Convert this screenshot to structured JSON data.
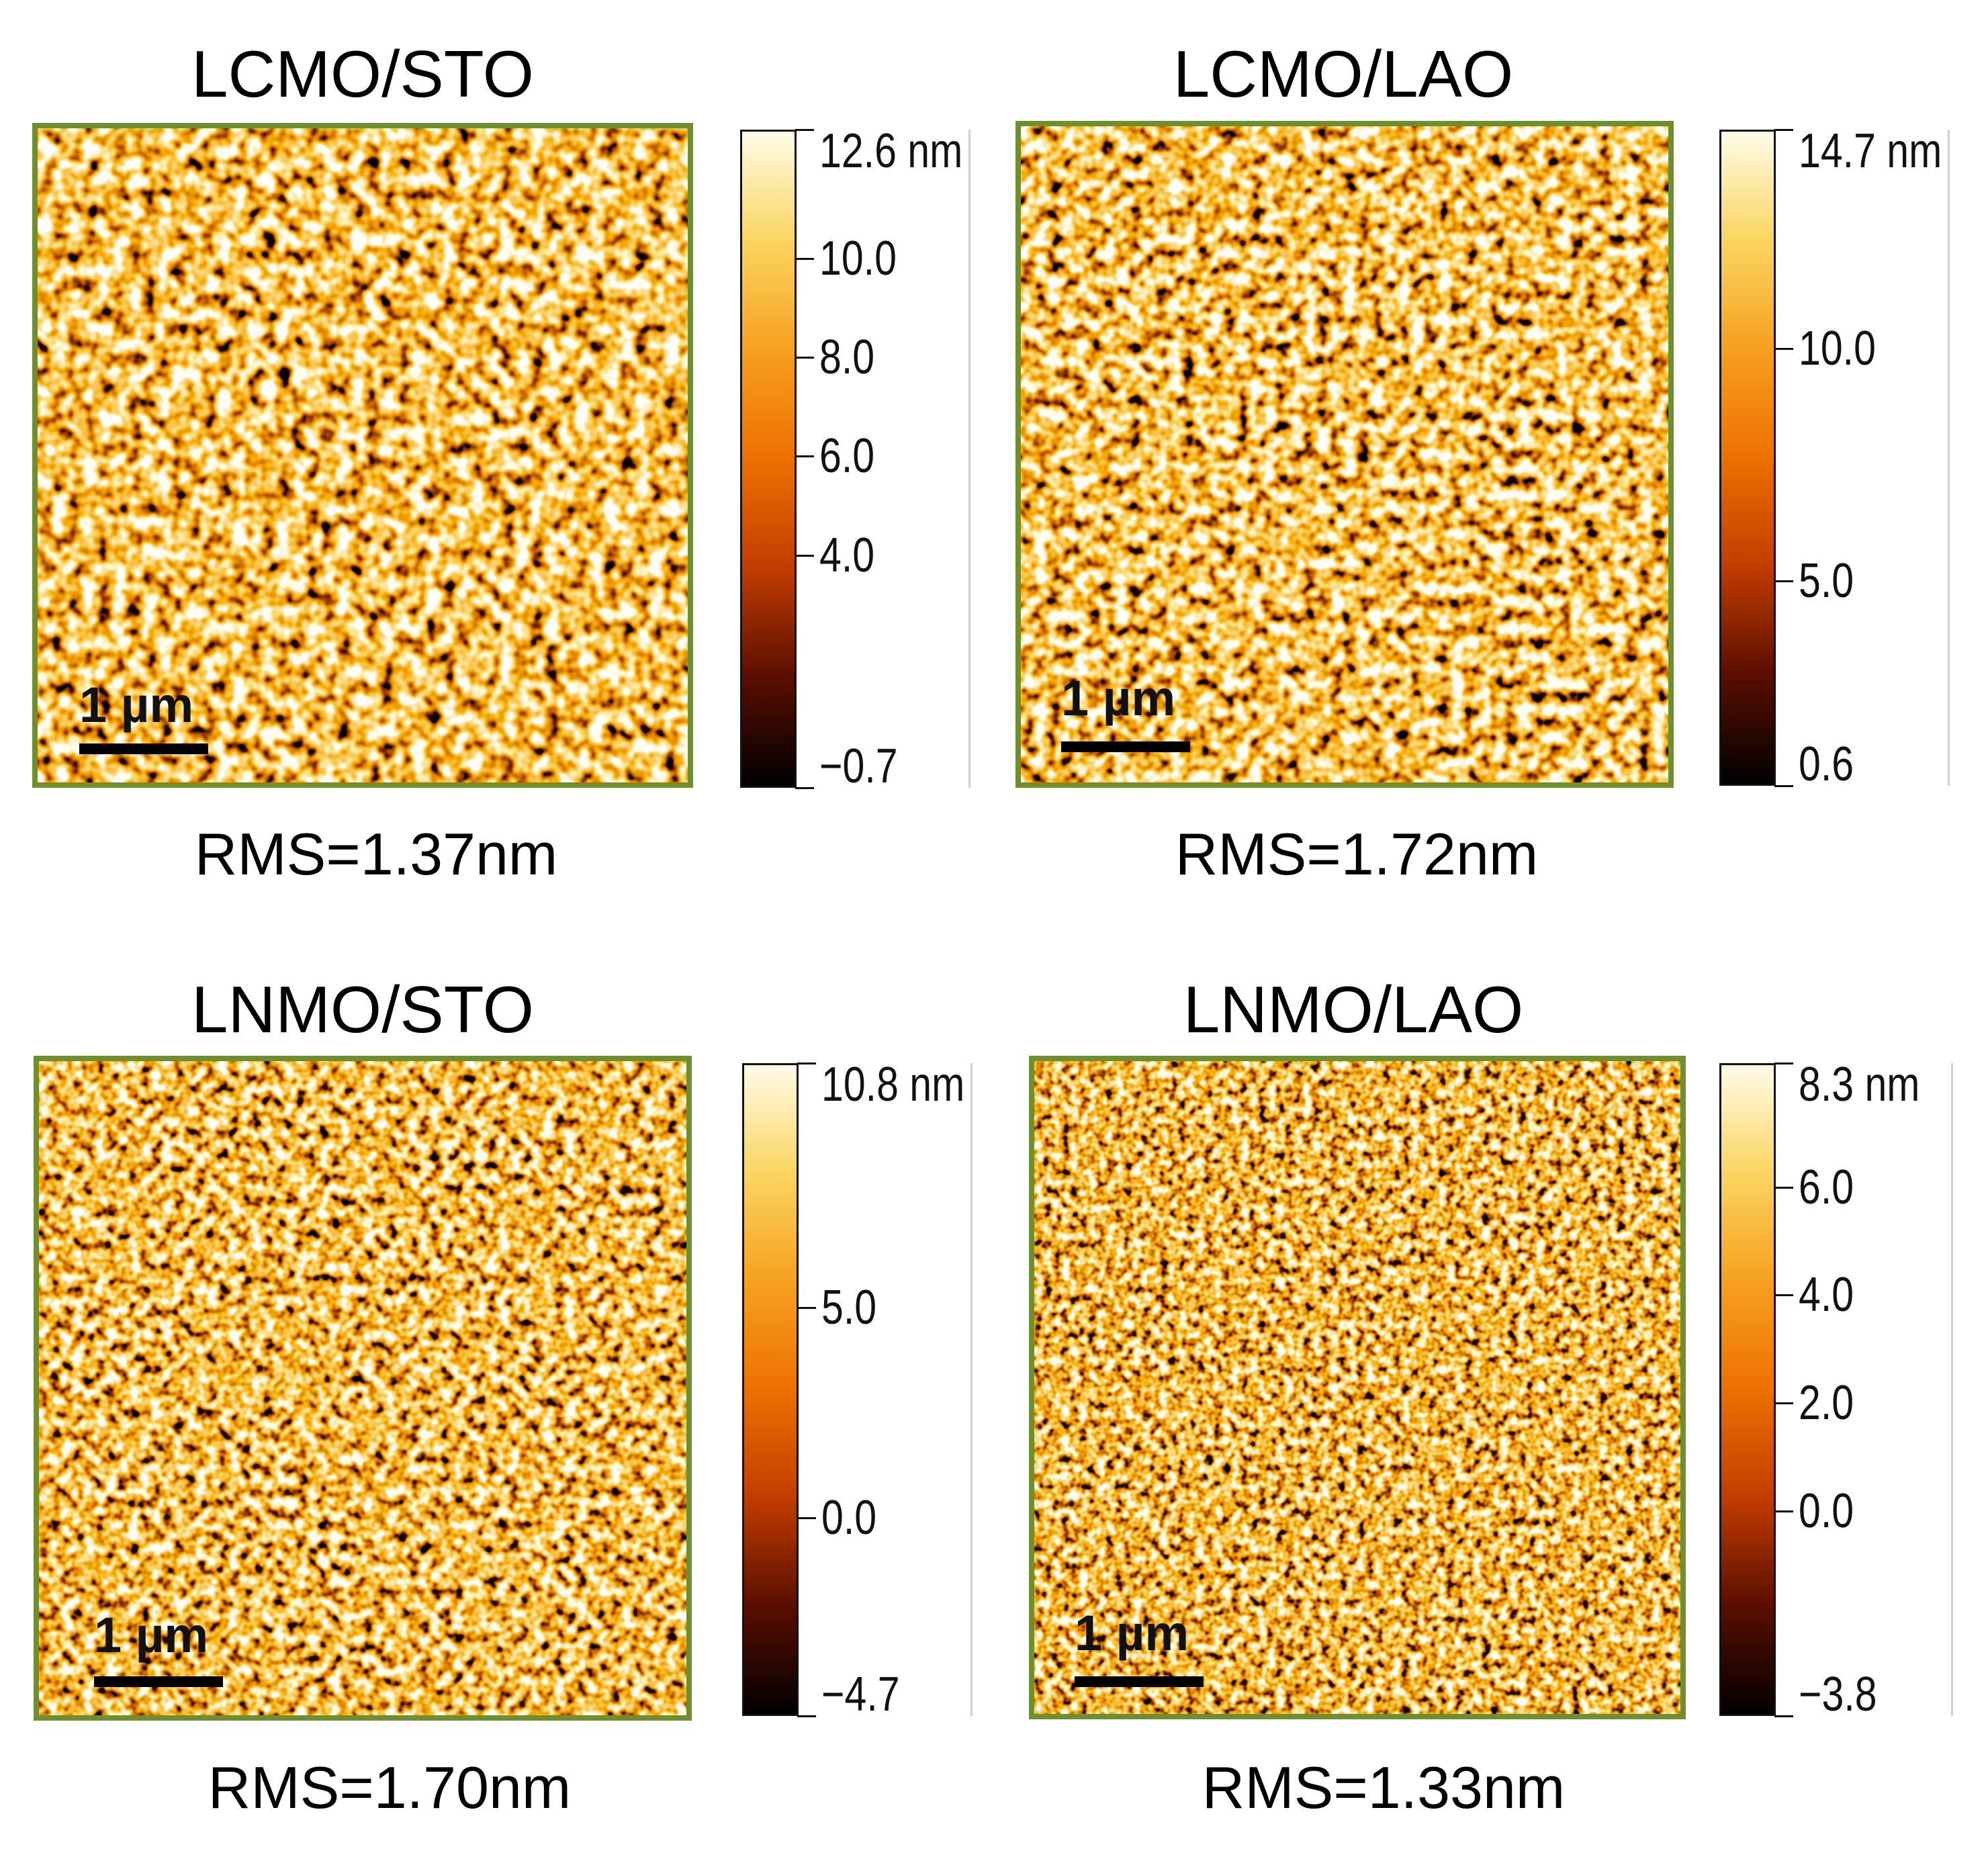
{
  "colors": {
    "frame": "#6e8f2e",
    "colormap": [
      "#000000",
      "#5a0e00",
      "#c23c00",
      "#ee7000",
      "#f6a020",
      "#fbd560",
      "#fffbe8"
    ]
  },
  "panels": [
    {
      "title": "LCMO/STO",
      "rms": "RMS=1.37nm",
      "scalebar": "1 µm",
      "colorbar": {
        "ticks": [
          {
            "label": "12.6 nm",
            "value": 12.6
          },
          {
            "label": "10.0",
            "value": 10.0
          },
          {
            "label": "8.0",
            "value": 8.0
          },
          {
            "label": "6.0",
            "value": 6.0
          },
          {
            "label": "4.0",
            "value": 4.0
          },
          {
            "label": "−0.7",
            "value": -0.7
          }
        ],
        "min": -0.7,
        "max": 12.6
      }
    },
    {
      "title": "LCMO/LAO",
      "rms": "RMS=1.72nm",
      "scalebar": "1 µm",
      "colorbar": {
        "ticks": [
          {
            "label": "14.7 nm",
            "value": 14.7
          },
          {
            "label": "10.0",
            "value": 10.0
          },
          {
            "label": "5.0",
            "value": 5.0
          },
          {
            "label": "0.6",
            "value": 0.6
          }
        ],
        "min": 0.6,
        "max": 14.7
      }
    },
    {
      "title": "LNMO/STO",
      "rms": "RMS=1.70nm",
      "scalebar": "1 µm",
      "colorbar": {
        "ticks": [
          {
            "label": "10.8 nm",
            "value": 10.8
          },
          {
            "label": "5.0",
            "value": 5.0
          },
          {
            "label": "0.0",
            "value": 0.0
          },
          {
            "label": "−4.7",
            "value": -4.7
          }
        ],
        "min": -4.7,
        "max": 10.8
      }
    },
    {
      "title": "LNMO/LAO",
      "rms": "RMS=1.33nm",
      "scalebar": "1 µm",
      "colorbar": {
        "ticks": [
          {
            "label": "8.3 nm",
            "value": 8.3
          },
          {
            "label": "6.0",
            "value": 6.0
          },
          {
            "label": "4.0",
            "value": 4.0
          },
          {
            "label": "2.0",
            "value": 2.0
          },
          {
            "label": "0.0",
            "value": 0.0
          },
          {
            "label": "−3.8",
            "value": -3.8
          }
        ],
        "min": -3.8,
        "max": 8.3
      }
    }
  ]
}
